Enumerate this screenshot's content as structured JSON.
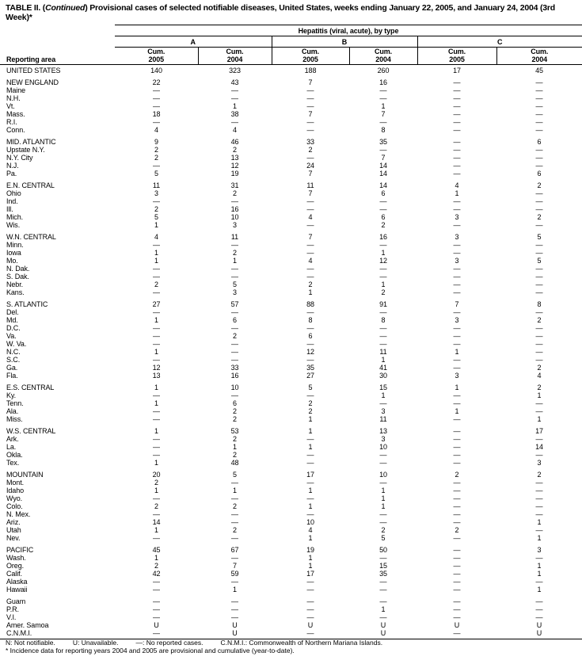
{
  "title": {
    "prefix": "TABLE II. (",
    "continued": "Continued",
    "text": ") Provisional cases of selected notifiable diseases, United States, weeks ending January 22, 2005, and January 24, 2004 (3rd Week)*"
  },
  "header": {
    "span_label": "Hepatitis (viral, acute), by type",
    "groups": [
      "A",
      "B",
      "C"
    ],
    "area_label": "Reporting area",
    "sub": [
      {
        "l1": "Cum.",
        "l2": "2005"
      },
      {
        "l1": "Cum.",
        "l2": "2004"
      },
      {
        "l1": "Cum.",
        "l2": "2005"
      },
      {
        "l1": "Cum.",
        "l2": "2004"
      },
      {
        "l1": "Cum.",
        "l2": "2005"
      },
      {
        "l1": "Cum.",
        "l2": "2004"
      }
    ]
  },
  "groups": [
    [
      [
        "UNITED STATES",
        "140",
        "323",
        "188",
        "260",
        "17",
        "45"
      ]
    ],
    [
      [
        "NEW ENGLAND",
        "22",
        "43",
        "7",
        "16",
        "—",
        "—"
      ],
      [
        "Maine",
        "—",
        "—",
        "—",
        "—",
        "—",
        "—"
      ],
      [
        "N.H.",
        "—",
        "—",
        "—",
        "—",
        "—",
        "—"
      ],
      [
        "Vt.",
        "—",
        "1",
        "—",
        "1",
        "—",
        "—"
      ],
      [
        "Mass.",
        "18",
        "38",
        "7",
        "7",
        "—",
        "—"
      ],
      [
        "R.I.",
        "—",
        "—",
        "—",
        "—",
        "—",
        "—"
      ],
      [
        "Conn.",
        "4",
        "4",
        "—",
        "8",
        "—",
        "—"
      ]
    ],
    [
      [
        "MID. ATLANTIC",
        "9",
        "46",
        "33",
        "35",
        "—",
        "6"
      ],
      [
        "Upstate N.Y.",
        "2",
        "2",
        "2",
        "—",
        "—",
        "—"
      ],
      [
        "N.Y. City",
        "2",
        "13",
        "—",
        "7",
        "—",
        "—"
      ],
      [
        "N.J.",
        "—",
        "12",
        "24",
        "14",
        "—",
        "—"
      ],
      [
        "Pa.",
        "5",
        "19",
        "7",
        "14",
        "—",
        "6"
      ]
    ],
    [
      [
        "E.N. CENTRAL",
        "11",
        "31",
        "11",
        "14",
        "4",
        "2"
      ],
      [
        "Ohio",
        "3",
        "2",
        "7",
        "6",
        "1",
        "—"
      ],
      [
        "Ind.",
        "—",
        "—",
        "—",
        "—",
        "—",
        "—"
      ],
      [
        "Ill.",
        "2",
        "16",
        "—",
        "—",
        "—",
        "—"
      ],
      [
        "Mich.",
        "5",
        "10",
        "4",
        "6",
        "3",
        "2"
      ],
      [
        "Wis.",
        "1",
        "3",
        "—",
        "2",
        "—",
        "—"
      ]
    ],
    [
      [
        "W.N. CENTRAL",
        "4",
        "11",
        "7",
        "16",
        "3",
        "5"
      ],
      [
        "Minn.",
        "—",
        "—",
        "—",
        "—",
        "—",
        "—"
      ],
      [
        "Iowa",
        "1",
        "2",
        "—",
        "1",
        "—",
        "—"
      ],
      [
        "Mo.",
        "1",
        "1",
        "4",
        "12",
        "3",
        "5"
      ],
      [
        "N. Dak.",
        "—",
        "—",
        "—",
        "—",
        "—",
        "—"
      ],
      [
        "S. Dak.",
        "—",
        "—",
        "—",
        "—",
        "—",
        "—"
      ],
      [
        "Nebr.",
        "2",
        "5",
        "2",
        "1",
        "—",
        "—"
      ],
      [
        "Kans.",
        "—",
        "3",
        "1",
        "2",
        "—",
        "—"
      ]
    ],
    [
      [
        "S. ATLANTIC",
        "27",
        "57",
        "88",
        "91",
        "7",
        "8"
      ],
      [
        "Del.",
        "—",
        "—",
        "—",
        "—",
        "—",
        "—"
      ],
      [
        "Md.",
        "1",
        "6",
        "8",
        "8",
        "3",
        "2"
      ],
      [
        "D.C.",
        "—",
        "—",
        "—",
        "—",
        "—",
        "—"
      ],
      [
        "Va.",
        "—",
        "2",
        "6",
        "—",
        "—",
        "—"
      ],
      [
        "W. Va.",
        "—",
        "—",
        "—",
        "—",
        "—",
        "—"
      ],
      [
        "N.C.",
        "1",
        "—",
        "12",
        "11",
        "1",
        "—"
      ],
      [
        "S.C.",
        "—",
        "—",
        "—",
        "1",
        "—",
        "—"
      ],
      [
        "Ga.",
        "12",
        "33",
        "35",
        "41",
        "—",
        "2"
      ],
      [
        "Fla.",
        "13",
        "16",
        "27",
        "30",
        "3",
        "4"
      ]
    ],
    [
      [
        "E.S. CENTRAL",
        "1",
        "10",
        "5",
        "15",
        "1",
        "2"
      ],
      [
        "Ky.",
        "—",
        "—",
        "—",
        "1",
        "—",
        "1"
      ],
      [
        "Tenn.",
        "1",
        "6",
        "2",
        "—",
        "—",
        "—"
      ],
      [
        "Ala.",
        "—",
        "2",
        "2",
        "3",
        "1",
        "—"
      ],
      [
        "Miss.",
        "—",
        "2",
        "1",
        "11",
        "—",
        "1"
      ]
    ],
    [
      [
        "W.S. CENTRAL",
        "1",
        "53",
        "1",
        "13",
        "—",
        "17"
      ],
      [
        "Ark.",
        "—",
        "2",
        "—",
        "3",
        "—",
        "—"
      ],
      [
        "La.",
        "—",
        "1",
        "1",
        "10",
        "—",
        "14"
      ],
      [
        "Okla.",
        "—",
        "2",
        "—",
        "—",
        "—",
        "—"
      ],
      [
        "Tex.",
        "1",
        "48",
        "—",
        "—",
        "—",
        "3"
      ]
    ],
    [
      [
        "MOUNTAIN",
        "20",
        "5",
        "17",
        "10",
        "2",
        "2"
      ],
      [
        "Mont.",
        "2",
        "—",
        "—",
        "—",
        "—",
        "—"
      ],
      [
        "Idaho",
        "1",
        "1",
        "1",
        "1",
        "—",
        "—"
      ],
      [
        "Wyo.",
        "—",
        "—",
        "—",
        "1",
        "—",
        "—"
      ],
      [
        "Colo.",
        "2",
        "2",
        "1",
        "1",
        "—",
        "—"
      ],
      [
        "N. Mex.",
        "—",
        "—",
        "—",
        "—",
        "—",
        "—"
      ],
      [
        "Ariz.",
        "14",
        "—",
        "10",
        "—",
        "—",
        "1"
      ],
      [
        "Utah",
        "1",
        "2",
        "4",
        "2",
        "2",
        "—"
      ],
      [
        "Nev.",
        "—",
        "—",
        "1",
        "5",
        "—",
        "1"
      ]
    ],
    [
      [
        "PACIFIC",
        "45",
        "67",
        "19",
        "50",
        "—",
        "3"
      ],
      [
        "Wash.",
        "1",
        "—",
        "1",
        "—",
        "—",
        "—"
      ],
      [
        "Oreg.",
        "2",
        "7",
        "1",
        "15",
        "—",
        "1"
      ],
      [
        "Calif.",
        "42",
        "59",
        "17",
        "35",
        "—",
        "1"
      ],
      [
        "Alaska",
        "—",
        "—",
        "—",
        "—",
        "—",
        "—"
      ],
      [
        "Hawaii",
        "—",
        "1",
        "—",
        "—",
        "—",
        "1"
      ]
    ],
    [
      [
        "Guam",
        "—",
        "—",
        "—",
        "—",
        "—",
        "—"
      ],
      [
        "P.R.",
        "—",
        "—",
        "—",
        "1",
        "—",
        "—"
      ],
      [
        "V.I.",
        "—",
        "—",
        "—",
        "—",
        "—",
        "—"
      ],
      [
        "Amer. Samoa",
        "U",
        "U",
        "U",
        "U",
        "U",
        "U"
      ],
      [
        "C.N.M.I.",
        "—",
        "U",
        "—",
        "U",
        "—",
        "U"
      ]
    ]
  ],
  "footer": {
    "legend": [
      "N: Not notifiable.",
      "U: Unavailable.",
      "—: No reported cases.",
      "C.N.M.I.: Commonwealth of Northern Mariana Islands."
    ],
    "note": "* Incidence data for reporting years 2004 and 2005 are provisional and cumulative (year-to-date)."
  }
}
